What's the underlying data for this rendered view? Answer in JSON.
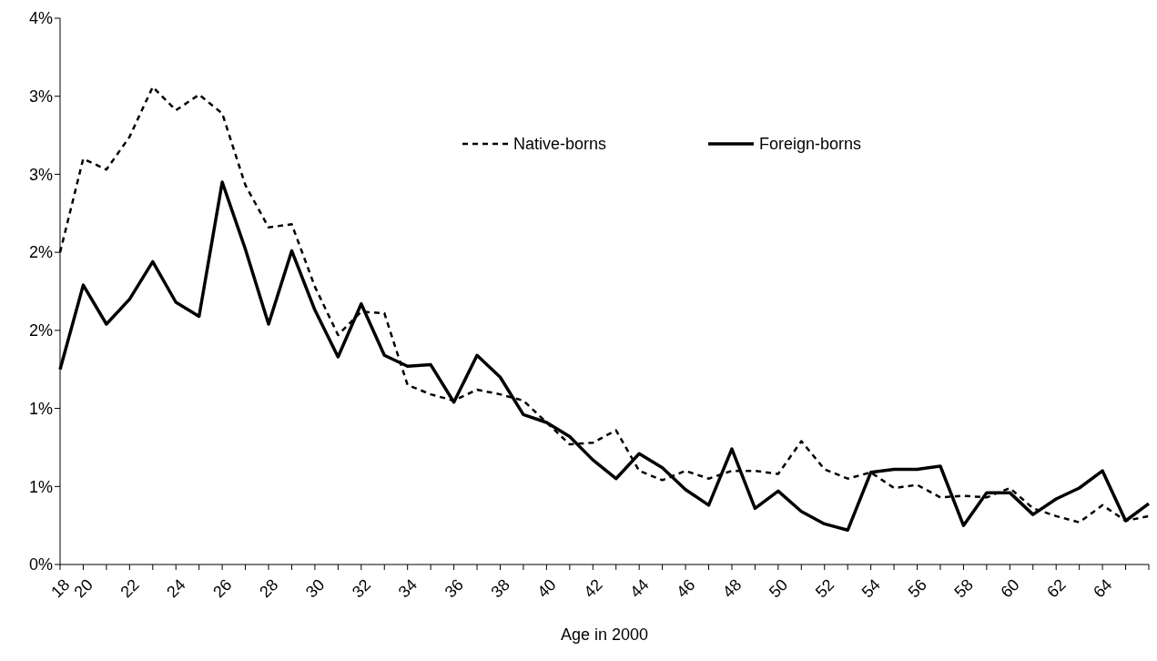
{
  "chart_data": {
    "type": "line",
    "xlabel": "Age in 2000",
    "categories": [
      "18",
      "20",
      null,
      "22",
      null,
      "24",
      null,
      "26",
      null,
      "28",
      null,
      "30",
      null,
      "32",
      null,
      "34",
      null,
      "36",
      null,
      "38",
      null,
      "40",
      null,
      "42",
      null,
      "44",
      null,
      "46",
      null,
      "48",
      null,
      "50",
      null,
      "52",
      null,
      "54",
      null,
      "56",
      null,
      "58",
      null,
      "60",
      null,
      "62",
      null,
      "64",
      null,
      null
    ],
    "ylim": [
      0,
      3.5
    ],
    "yticks": [
      {
        "value": 0,
        "label": "0%"
      },
      {
        "value": 0.5,
        "label": "1%"
      },
      {
        "value": 1,
        "label": "1%"
      },
      {
        "value": 1.5,
        "label": "2%"
      },
      {
        "value": 2,
        "label": "2%"
      },
      {
        "value": 2.5,
        "label": "3%"
      },
      {
        "value": 3,
        "label": "3%"
      },
      {
        "value": 3.5,
        "label": "4%"
      }
    ],
    "legend": "top",
    "grid": false,
    "marker": "none",
    "series": [
      {
        "name": "Native-borns",
        "color": "#000000",
        "line_style": "dashed",
        "values": [
          2.0,
          2.6,
          2.53,
          2.74,
          3.06,
          2.91,
          3.01,
          2.89,
          2.43,
          2.16,
          2.18,
          1.78,
          1.47,
          1.62,
          1.61,
          1.15,
          1.09,
          1.05,
          1.12,
          1.09,
          1.05,
          0.91,
          0.77,
          0.78,
          0.86,
          0.6,
          0.54,
          0.6,
          0.55,
          0.6,
          0.6,
          0.58,
          0.79,
          0.61,
          0.55,
          0.59,
          0.49,
          0.51,
          0.43,
          0.44,
          0.43,
          0.49,
          0.36,
          0.31,
          0.27,
          0.38,
          0.28,
          0.31
        ]
      },
      {
        "name": "Foreign-borns",
        "color": "#000000",
        "line_style": "solid",
        "values": [
          1.25,
          1.79,
          1.54,
          1.7,
          1.94,
          1.68,
          1.59,
          2.45,
          2.02,
          1.54,
          2.01,
          1.63,
          1.33,
          1.67,
          1.34,
          1.27,
          1.28,
          1.04,
          1.34,
          1.2,
          0.96,
          0.91,
          0.82,
          0.67,
          0.55,
          0.71,
          0.62,
          0.48,
          0.38,
          0.74,
          0.36,
          0.47,
          0.34,
          0.26,
          0.22,
          0.59,
          0.61,
          0.61,
          0.63,
          0.25,
          0.46,
          0.46,
          0.32,
          0.42,
          0.49,
          0.6,
          0.28,
          0.39
        ]
      }
    ]
  }
}
